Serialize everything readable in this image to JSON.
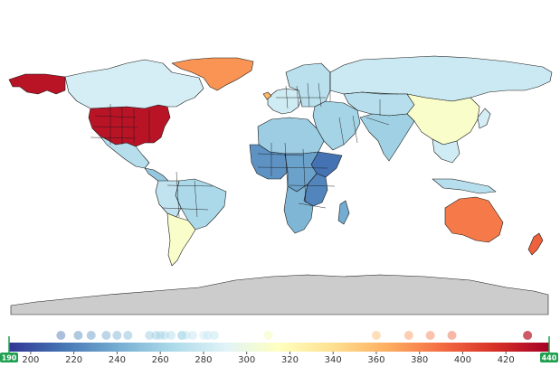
{
  "map": {
    "colorscale": [
      "#313695",
      "#4575b4",
      "#74add1",
      "#abd9e9",
      "#e0f3f8",
      "#ffffbf",
      "#fee090",
      "#fdae61",
      "#f46d43",
      "#d73027",
      "#a50026"
    ],
    "range": [
      190,
      440
    ],
    "background": "#ffffff",
    "border_color": "#1a1a1a",
    "antarctica_color": "#cccccc"
  },
  "colorbar": {
    "ticks": [
      "200",
      "220",
      "240",
      "260",
      "280",
      "300",
      "320",
      "340",
      "360",
      "380",
      "400",
      "420"
    ],
    "handle_min_label": "190",
    "handle_max_label": "440",
    "handle_color": "#1fa04f"
  },
  "chart_data": {
    "type": "choropleth",
    "scale_range": [
      190,
      440
    ],
    "regions": [
      {
        "name": "Alaska",
        "value": 430
      },
      {
        "name": "United States",
        "value": 430
      },
      {
        "name": "Canada",
        "value": 285
      },
      {
        "name": "Greenland",
        "value": 375
      },
      {
        "name": "Mexico",
        "value": 270
      },
      {
        "name": "Central America",
        "value": 255
      },
      {
        "name": "Brazil",
        "value": 265
      },
      {
        "name": "Andean South America",
        "value": 275
      },
      {
        "name": "Southern Cone",
        "value": 310
      },
      {
        "name": "Western Europe",
        "value": 282
      },
      {
        "name": "Eastern Europe",
        "value": 272
      },
      {
        "name": "Iceland",
        "value": 360
      },
      {
        "name": "Russia",
        "value": 280
      },
      {
        "name": "Central Asia",
        "value": 270
      },
      {
        "name": "China",
        "value": 310
      },
      {
        "name": "Middle East",
        "value": 262
      },
      {
        "name": "South Asia",
        "value": 260
      },
      {
        "name": "Southeast Asia",
        "value": 282
      },
      {
        "name": "North Africa",
        "value": 258
      },
      {
        "name": "West Africa",
        "value": 228
      },
      {
        "name": "Horn of Africa",
        "value": 214
      },
      {
        "name": "Central Africa",
        "value": 235
      },
      {
        "name": "East Africa",
        "value": 222
      },
      {
        "name": "Southern Africa",
        "value": 245
      },
      {
        "name": "Madagascar",
        "value": 240
      },
      {
        "name": "Australia",
        "value": 385
      },
      {
        "name": "New Zealand",
        "value": 395
      },
      {
        "name": "Japan",
        "value": 285
      },
      {
        "name": "Indonesia",
        "value": 270
      }
    ]
  }
}
